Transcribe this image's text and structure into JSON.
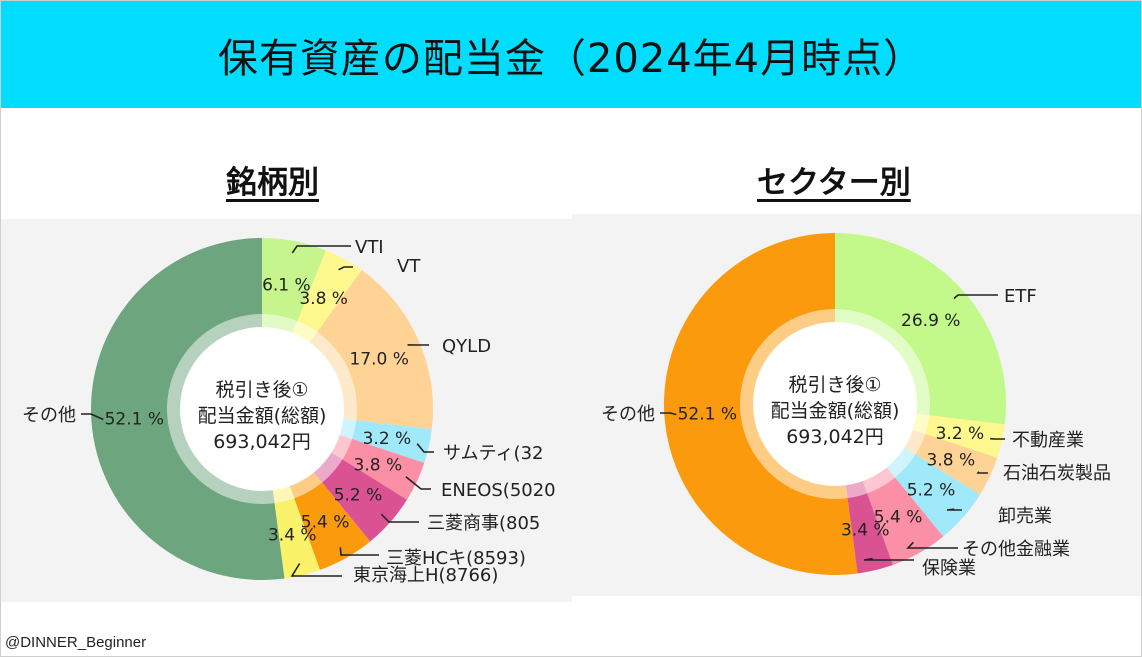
{
  "header": {
    "title": "保有資産の配当金（2024年4月時点）"
  },
  "credit": "@DINNER_Beginner",
  "chart_data": [
    {
      "type": "pie",
      "variant": "donut",
      "title": "銘柄別",
      "center_text": [
        "税引き後①",
        "配当金額(総額)",
        "693,042円"
      ],
      "slices": [
        {
          "label": "VTI",
          "value": 6.1,
          "value_label": "6.1 %",
          "color": "#c5f58c"
        },
        {
          "label": "VT",
          "value": 3.8,
          "value_label": "3.8 %",
          "color": "#fdf98e"
        },
        {
          "label": "QYLD",
          "value": 17.0,
          "value_label": "17.0 %",
          "color": "#ffd396"
        },
        {
          "label": "サムティ(32",
          "value": 3.2,
          "value_label": "3.2 %",
          "color": "#9fe9fb"
        },
        {
          "label": "ENEOS(5020",
          "value": 3.8,
          "value_label": "3.8 %",
          "color": "#fb8fa5"
        },
        {
          "label": "三菱商事(805",
          "value": 5.2,
          "value_label": "5.2 %",
          "color": "#da5292"
        },
        {
          "label": "三菱HCキ(8593)",
          "value": 5.4,
          "value_label": "5.4 %",
          "color": "#fb9a0c"
        },
        {
          "label": "東京海上H(8766)",
          "value": 3.4,
          "value_label": "3.4 %",
          "color": "#faf36a"
        },
        {
          "label": "その他",
          "value": 52.1,
          "value_label": "52.1 %",
          "color": "#6da57e"
        }
      ]
    },
    {
      "type": "pie",
      "variant": "donut",
      "title": "セクター別",
      "center_text": [
        "税引き後①",
        "配当金額(総額)",
        "693,042円"
      ],
      "slices": [
        {
          "label": "ETF",
          "value": 26.9,
          "value_label": "26.9 %",
          "color": "#c2f98a"
        },
        {
          "label": "不動産業",
          "value": 3.2,
          "value_label": "3.2 %",
          "color": "#fdf98e"
        },
        {
          "label": "石油石炭製品",
          "value": 3.8,
          "value_label": "3.8 %",
          "color": "#ffd396"
        },
        {
          "label": "卸売業",
          "value": 5.2,
          "value_label": "5.2 %",
          "color": "#9fe9fb"
        },
        {
          "label": "その他金融業",
          "value": 5.4,
          "value_label": "5.4 %",
          "color": "#fb8fa5"
        },
        {
          "label": "保険業",
          "value": 3.4,
          "value_label": "3.4 %",
          "color": "#da5292"
        },
        {
          "label": "その他",
          "value": 52.1,
          "value_label": "52.1 %",
          "color": "#fb9a0c"
        }
      ]
    }
  ]
}
